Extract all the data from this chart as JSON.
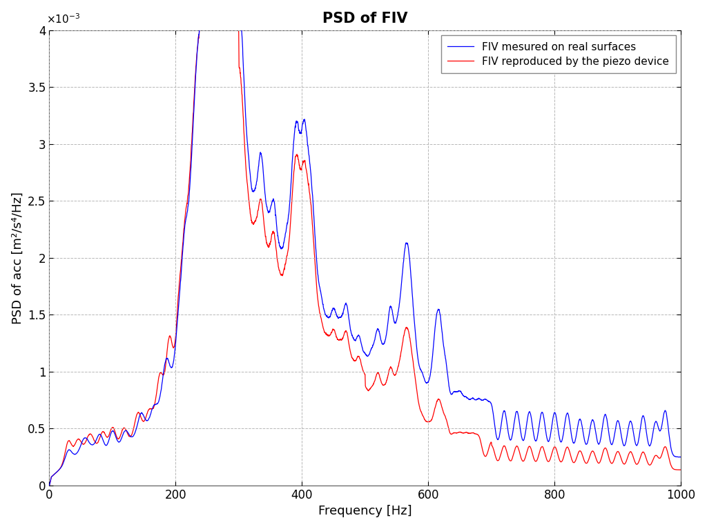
{
  "title": "PSD of FIV",
  "xlabel": "Frequency [Hz]",
  "ylabel": "PSD of acc [m²/s⁴/Hz]",
  "xlim": [
    0,
    1000
  ],
  "ylim": [
    0,
    0.004
  ],
  "yticks": [
    0,
    0.0005,
    0.001,
    0.0015,
    0.002,
    0.0025,
    0.003,
    0.0035,
    0.004
  ],
  "ytick_labels": [
    "0",
    "0.5",
    "1",
    "1.5",
    "2",
    "2.5",
    "3",
    "3.5",
    "4"
  ],
  "xticks": [
    0,
    200,
    400,
    600,
    800,
    1000
  ],
  "blue_color": "#0000FF",
  "red_color": "#FF0000",
  "line_width": 0.9,
  "legend_labels": [
    "FIV mesured on real surfaces",
    "FIV reproduced by the piezo device"
  ],
  "grid_color": "#b0b0b0",
  "background_color": "#ffffff",
  "title_fontsize": 15,
  "title_fontweight": "bold",
  "label_fontsize": 13,
  "tick_fontsize": 12,
  "legend_fontsize": 11
}
